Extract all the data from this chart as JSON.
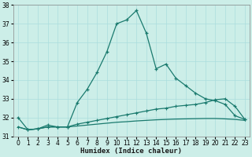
{
  "xlabel": "Humidex (Indice chaleur)",
  "bg_color": "#cceee8",
  "line_color": "#1a7a6e",
  "grid_color": "#aadddd",
  "xlim": [
    -0.5,
    23.5
  ],
  "ylim": [
    31,
    38
  ],
  "yticks": [
    31,
    32,
    33,
    34,
    35,
    36,
    37,
    38
  ],
  "xticks": [
    0,
    1,
    2,
    3,
    4,
    5,
    6,
    7,
    8,
    9,
    10,
    11,
    12,
    13,
    14,
    15,
    16,
    17,
    18,
    19,
    20,
    21,
    22,
    23
  ],
  "curve1_x": [
    0,
    1,
    2,
    3,
    4,
    5,
    6,
    7,
    8,
    9,
    10,
    11,
    12,
    13,
    14,
    15,
    16,
    17,
    18,
    19,
    20,
    21,
    22,
    23
  ],
  "curve1_y": [
    32.0,
    31.35,
    31.4,
    31.6,
    31.5,
    31.5,
    32.8,
    33.5,
    34.4,
    35.5,
    37.0,
    37.2,
    37.7,
    36.5,
    34.6,
    34.85,
    34.1,
    33.7,
    33.3,
    33.0,
    32.9,
    32.7,
    32.1,
    31.9
  ],
  "curve2_x": [
    0,
    1,
    2,
    3,
    4,
    5,
    6,
    7,
    8,
    9,
    10,
    11,
    12,
    13,
    14,
    15,
    16,
    17,
    18,
    19,
    20,
    21,
    22,
    23
  ],
  "curve2_y": [
    31.5,
    31.35,
    31.4,
    31.5,
    31.5,
    31.5,
    31.65,
    31.75,
    31.85,
    31.95,
    32.05,
    32.15,
    32.25,
    32.35,
    32.45,
    32.5,
    32.6,
    32.65,
    32.7,
    32.8,
    32.95,
    33.0,
    32.6,
    31.9
  ],
  "curve3_x": [
    0,
    1,
    2,
    3,
    4,
    5,
    6,
    7,
    8,
    9,
    10,
    11,
    12,
    13,
    14,
    15,
    16,
    17,
    18,
    19,
    20,
    21,
    22,
    23
  ],
  "curve3_y": [
    31.5,
    31.35,
    31.4,
    31.5,
    31.5,
    31.5,
    31.55,
    31.6,
    31.65,
    31.7,
    31.75,
    31.78,
    31.82,
    31.85,
    31.88,
    31.9,
    31.92,
    31.93,
    31.94,
    31.95,
    31.95,
    31.93,
    31.9,
    31.85
  ],
  "tick_fontsize": 5.5,
  "label_fontsize": 6.5
}
